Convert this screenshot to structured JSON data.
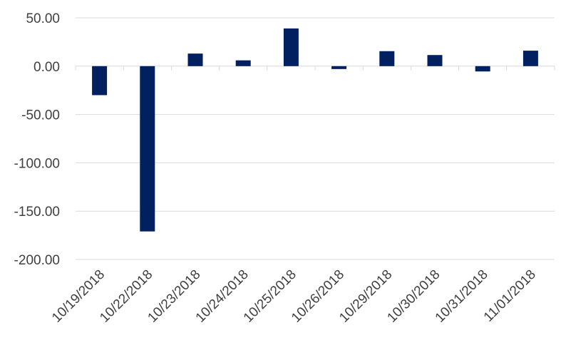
{
  "chart_data": {
    "type": "bar",
    "title": "",
    "xlabel": "",
    "ylabel": "",
    "categories": [
      "10/19/2018",
      "10/22/2018",
      "10/23/2018",
      "10/24/2018",
      "10/25/2018",
      "10/26/2018",
      "10/29/2018",
      "10/30/2018",
      "10/31/2018",
      "11/01/2018"
    ],
    "values": [
      -30,
      -171,
      13,
      6,
      39,
      -3,
      15.5,
      11.5,
      -5.5,
      16
    ],
    "ylim": [
      -200,
      50
    ],
    "yticks": [
      50,
      0,
      -50,
      -100,
      -150,
      -200
    ],
    "ytick_labels": [
      "50.00",
      "0.00",
      "-50.00",
      "-100.00",
      "-150.00",
      "-200.00"
    ],
    "grid": true,
    "legend": false,
    "bar_color": "#002060"
  }
}
